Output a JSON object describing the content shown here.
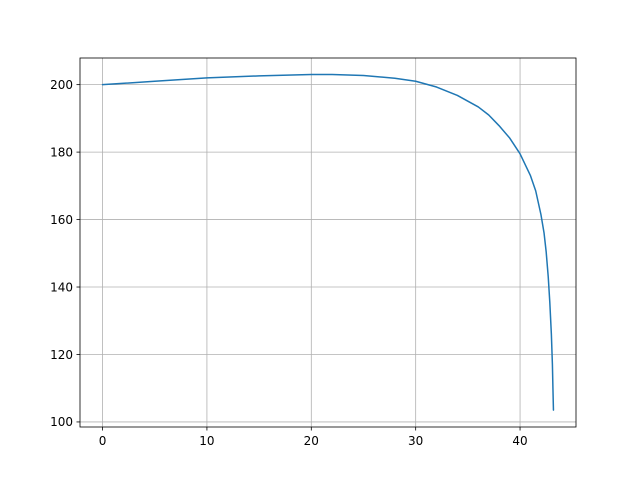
{
  "chart_data": {
    "type": "line",
    "title": "",
    "xlabel": "",
    "ylabel": "",
    "xlim": [
      -2.16,
      45.36
    ],
    "ylim": [
      98.5,
      207.9
    ],
    "grid": true,
    "x_ticks": [
      0,
      10,
      20,
      30,
      40
    ],
    "y_ticks": [
      100,
      120,
      140,
      160,
      180,
      200
    ],
    "colors": {
      "series": "#1f77b4",
      "grid": "#b0b0b0",
      "axes": "#000000"
    },
    "series": [
      {
        "x": [
          0,
          5,
          10,
          15,
          20,
          22,
          25,
          28,
          30,
          32,
          34,
          36,
          37,
          38,
          39,
          40,
          41,
          41.5,
          42,
          42.3,
          42.5,
          42.7,
          42.85,
          43.0,
          43.1,
          43.15,
          43.2
        ],
        "y": [
          200.0,
          201.0,
          202.0,
          202.6,
          203.0,
          203.0,
          202.7,
          201.9,
          201.0,
          199.3,
          196.8,
          193.4,
          191.0,
          187.8,
          184.2,
          179.5,
          173.0,
          168.5,
          161.5,
          156.0,
          150.5,
          143.0,
          135.5,
          126.0,
          117.0,
          110.0,
          103.5
        ]
      }
    ]
  }
}
